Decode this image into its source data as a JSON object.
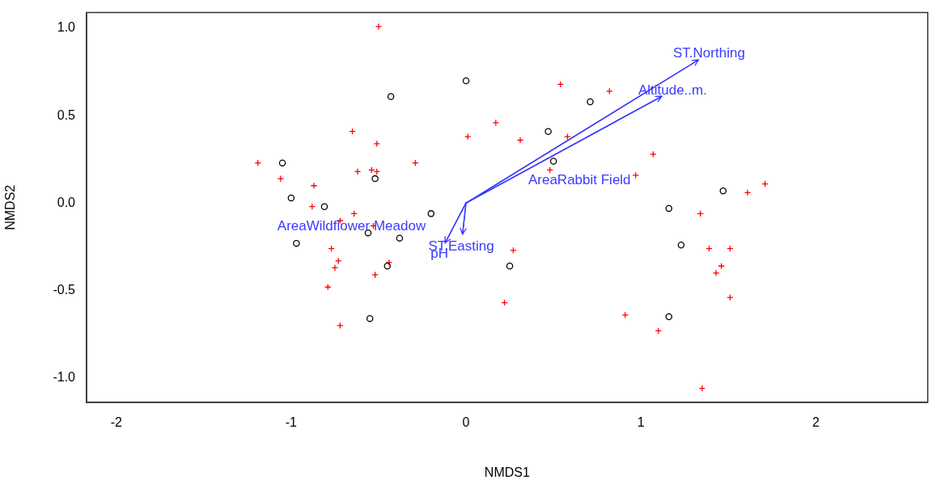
{
  "chart_data": {
    "type": "scatter",
    "xlabel": "NMDS1",
    "ylabel": "NMDS2",
    "xlim": [
      -2.17,
      2.64
    ],
    "ylim": [
      -1.14,
      1.09
    ],
    "xticks": [
      -2,
      -1,
      0,
      1,
      2
    ],
    "yticks": [
      {
        "value": -1,
        "label": "-1.0"
      },
      {
        "value": -0.5,
        "label": "-0.5"
      },
      {
        "value": 0,
        "label": "0.0"
      },
      {
        "value": 0.5,
        "label": "0.5"
      },
      {
        "value": 1,
        "label": "1.0"
      }
    ],
    "grid": false,
    "series": [
      {
        "marker": "circle",
        "color": "#000000",
        "x": [
          -1.05,
          -1.0,
          -0.81,
          -0.97,
          -0.52,
          -0.56,
          -0.45,
          -0.55,
          -0.38,
          -0.2,
          0.0,
          -0.43,
          0.25,
          0.47,
          0.5,
          0.71,
          1.16,
          1.47,
          1.23,
          1.16
        ],
        "values": [
          0.23,
          0.03,
          -0.02,
          -0.23,
          0.14,
          -0.17,
          -0.36,
          -0.66,
          -0.2,
          -0.06,
          0.7,
          0.61,
          -0.36,
          0.41,
          0.24,
          0.58,
          -0.03,
          0.07,
          -0.24,
          -0.65
        ]
      },
      {
        "marker": "cross",
        "color": "#ff0000",
        "x": [
          -0.5,
          -0.65,
          -0.51,
          -1.19,
          -0.62,
          -0.54,
          -0.51,
          -1.06,
          -0.87,
          -0.88,
          -0.64,
          -0.72,
          -0.53,
          -0.77,
          -0.73,
          -0.75,
          -0.52,
          -0.79,
          -0.72,
          -0.44,
          0.27,
          0.22,
          0.91,
          1.1,
          0.54,
          0.82,
          0.17,
          0.01,
          0.31,
          0.58,
          1.07,
          -0.29,
          0.48,
          0.97,
          1.61,
          1.71,
          1.34,
          1.39,
          1.51,
          1.46,
          1.43,
          1.51,
          1.35
        ],
        "values": [
          1.01,
          0.41,
          0.34,
          0.23,
          0.18,
          0.19,
          0.18,
          0.14,
          0.1,
          -0.02,
          -0.06,
          -0.1,
          -0.13,
          -0.26,
          -0.33,
          -0.37,
          -0.41,
          -0.48,
          -0.7,
          -0.34,
          -0.27,
          -0.57,
          -0.64,
          -0.73,
          0.68,
          0.64,
          0.46,
          0.38,
          0.36,
          0.38,
          0.28,
          0.23,
          0.19,
          0.16,
          0.06,
          0.11,
          -0.06,
          -0.26,
          -0.26,
          -0.36,
          -0.4,
          -0.54,
          -1.06
        ]
      },
      {
        "name": "ST.Northing",
        "type": "line",
        "marker": "none",
        "color": "#3a3aff",
        "x": [
          0,
          1.33
        ],
        "values": [
          0,
          0.82
        ]
      },
      {
        "name": "Altitude..m.",
        "type": "line",
        "marker": "none",
        "color": "#3a3aff",
        "x": [
          0,
          1.12
        ],
        "values": [
          0,
          0.61
        ]
      },
      {
        "name": "ST.Easting",
        "type": "line",
        "marker": "none",
        "color": "#3a3aff",
        "x": [
          0,
          -0.02
        ],
        "values": [
          0,
          -0.18
        ]
      },
      {
        "name": "pH",
        "type": "line",
        "marker": "none",
        "color": "#3a3aff",
        "x": [
          0,
          -0.12
        ],
        "values": [
          0,
          -0.23
        ]
      }
    ],
    "annotations": [
      "AreaRabbit Field",
      "AreaWildflower Meadow"
    ]
  }
}
